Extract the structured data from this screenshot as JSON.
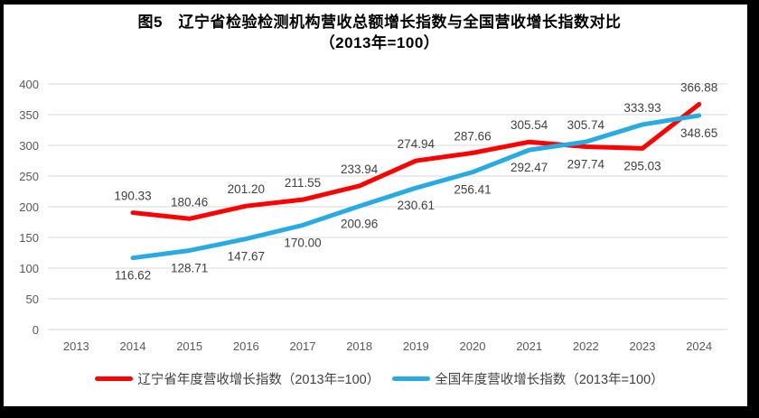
{
  "window": {
    "background": "#ffffff",
    "frame_color": "#000000"
  },
  "title": {
    "line1": "图5　辽宁省检验检测机构营收总额增长指数与全国营收增长指数对比",
    "line2": "（2013年=100）"
  },
  "chart_data": {
    "type": "line",
    "categories": [
      "2013",
      "2014",
      "2015",
      "2016",
      "2017",
      "2018",
      "2019",
      "2020",
      "2021",
      "2022",
      "2023",
      "2024"
    ],
    "series": [
      {
        "name": "辽宁省年度营收增长指数（2013年=100）",
        "id": "liaoning-index-line",
        "color": "#FF0000",
        "values": [
          null,
          190.33,
          180.46,
          201.2,
          211.55,
          233.94,
          274.94,
          287.66,
          305.54,
          297.74,
          295.03,
          366.88
        ],
        "value_labels": [
          null,
          "190.33",
          "180.46",
          "201.20",
          "211.55",
          "233.94",
          "274.94",
          "287.66",
          "305.54",
          "297.74",
          "295.03",
          "366.88"
        ],
        "label_positions": [
          null,
          "above",
          "above",
          "above",
          "above",
          "above",
          "above",
          "above",
          "above",
          "below",
          "below",
          "above"
        ]
      },
      {
        "name": "全国年度营收增长指数（2013年=100）",
        "id": "national-index-line",
        "color": "#29ABE2",
        "values": [
          null,
          116.62,
          128.71,
          147.67,
          170.0,
          200.96,
          230.61,
          256.41,
          292.47,
          305.74,
          333.93,
          348.65
        ],
        "value_labels": [
          null,
          "116.62",
          "128.71",
          "147.67",
          "170.00",
          "200.96",
          "230.61",
          "256.41",
          "292.47",
          "305.74",
          "333.93",
          "348.65"
        ],
        "label_positions": [
          null,
          "below",
          "below",
          "below",
          "below",
          "below",
          "below",
          "below",
          "below",
          "above",
          "above",
          "below"
        ]
      }
    ],
    "ylim": [
      0,
      400
    ],
    "y_ticks": [
      "0",
      "50",
      "100",
      "150",
      "200",
      "250",
      "300",
      "350",
      "400"
    ],
    "grid": true,
    "grid_color": "#D9D9D9",
    "tick_label_color": "#595959",
    "data_label_color": "#404040",
    "legend_position": "bottom"
  }
}
